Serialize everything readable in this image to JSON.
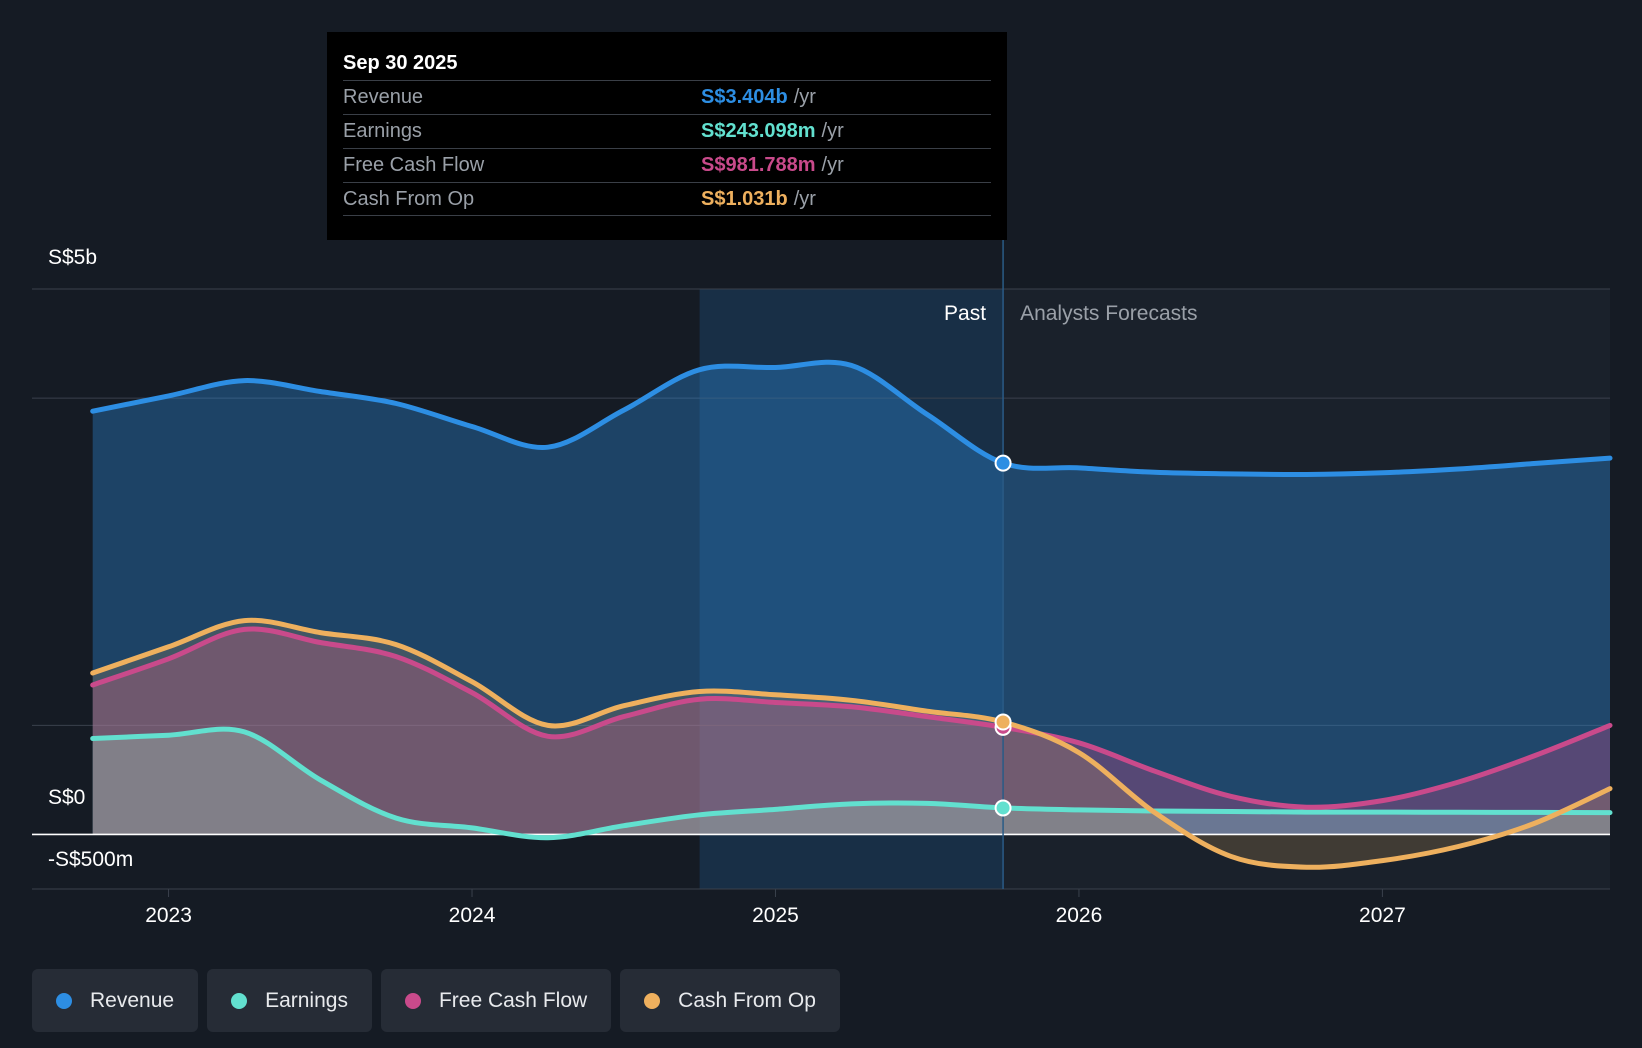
{
  "tooltip": {
    "date": "Sep 30 2025",
    "rows": [
      {
        "label": "Revenue",
        "value": "S$3.404b",
        "unit": "/yr",
        "color": "#2d8ee3"
      },
      {
        "label": "Earnings",
        "value": "S$243.098m",
        "unit": "/yr",
        "color": "#62e0cf"
      },
      {
        "label": "Free Cash Flow",
        "value": "S$981.788m",
        "unit": "/yr",
        "color": "#c94a8b"
      },
      {
        "label": "Cash From Op",
        "value": "S$1.031b",
        "unit": "/yr",
        "color": "#eeb05e"
      }
    ]
  },
  "legend": [
    {
      "label": "Revenue",
      "color": "#2d8ee3"
    },
    {
      "label": "Earnings",
      "color": "#62e0cf"
    },
    {
      "label": "Free Cash Flow",
      "color": "#c94a8b"
    },
    {
      "label": "Cash From Op",
      "color": "#eeb05e"
    }
  ],
  "chart_data": {
    "type": "area",
    "title": "",
    "y_tick_labels": [
      "S$5b",
      "S$0",
      "-S$500m"
    ],
    "y_ticks": [
      5000,
      0,
      -500
    ],
    "ylim": [
      -500,
      5000
    ],
    "x_tick_labels": [
      "2023",
      "2024",
      "2025",
      "2026",
      "2027"
    ],
    "x_ticks": [
      2023,
      2024,
      2025,
      2026,
      2027
    ],
    "xlim": [
      2022.55,
      2027.75
    ],
    "past_label": "Past",
    "forecast_label": "Analysts Forecasts",
    "past_shade_start": 2024.75,
    "divider_x": 2025.75,
    "series": [
      {
        "name": "Revenue",
        "color": "#2d8ee3",
        "x": [
          2022.75,
          2023.0,
          2023.25,
          2023.5,
          2023.75,
          2024.0,
          2024.25,
          2024.5,
          2024.75,
          2025.0,
          2025.25,
          2025.5,
          2025.75,
          2026.0,
          2026.25,
          2026.5,
          2026.75,
          2027.0,
          2027.25,
          2027.5,
          2027.75
        ],
        "y": [
          3880,
          4020,
          4160,
          4060,
          3950,
          3740,
          3550,
          3890,
          4260,
          4280,
          4300,
          3850,
          3404,
          3360,
          3320,
          3305,
          3300,
          3315,
          3350,
          3400,
          3450
        ]
      },
      {
        "name": "Earnings",
        "color": "#62e0cf",
        "x": [
          2022.75,
          2023.0,
          2023.25,
          2023.5,
          2023.75,
          2024.0,
          2024.25,
          2024.5,
          2024.75,
          2025.0,
          2025.25,
          2025.5,
          2025.75,
          2026.0,
          2026.25,
          2026.5,
          2026.75,
          2027.0,
          2027.25,
          2027.5,
          2027.75
        ],
        "y": [
          880,
          910,
          940,
          500,
          150,
          60,
          -30,
          80,
          180,
          230,
          280,
          285,
          243,
          225,
          215,
          210,
          205,
          205,
          203,
          202,
          200
        ]
      },
      {
        "name": "Free Cash Flow",
        "color": "#c94a8b",
        "x": [
          2022.75,
          2023.0,
          2023.25,
          2023.5,
          2023.75,
          2024.0,
          2024.25,
          2024.5,
          2024.75,
          2025.0,
          2025.25,
          2025.5,
          2025.75,
          2026.0,
          2026.25,
          2026.5,
          2026.75,
          2027.0,
          2027.25,
          2027.5,
          2027.75
        ],
        "y": [
          1370,
          1610,
          1880,
          1760,
          1630,
          1300,
          900,
          1080,
          1240,
          1210,
          1170,
          1080,
          982,
          840,
          580,
          350,
          250,
          310,
          480,
          720,
          1000
        ]
      },
      {
        "name": "Cash From Op",
        "color": "#eeb05e",
        "x": [
          2022.75,
          2023.0,
          2023.25,
          2023.5,
          2023.75,
          2024.0,
          2024.25,
          2024.5,
          2024.75,
          2025.0,
          2025.25,
          2025.5,
          2025.75,
          2026.0,
          2026.25,
          2026.5,
          2026.75,
          2027.0,
          2027.25,
          2027.5,
          2027.75
        ],
        "y": [
          1480,
          1720,
          1960,
          1850,
          1740,
          1400,
          1000,
          1180,
          1310,
          1280,
          1230,
          1130,
          1031,
          750,
          200,
          -200,
          -300,
          -240,
          -110,
          100,
          420
        ]
      }
    ]
  }
}
